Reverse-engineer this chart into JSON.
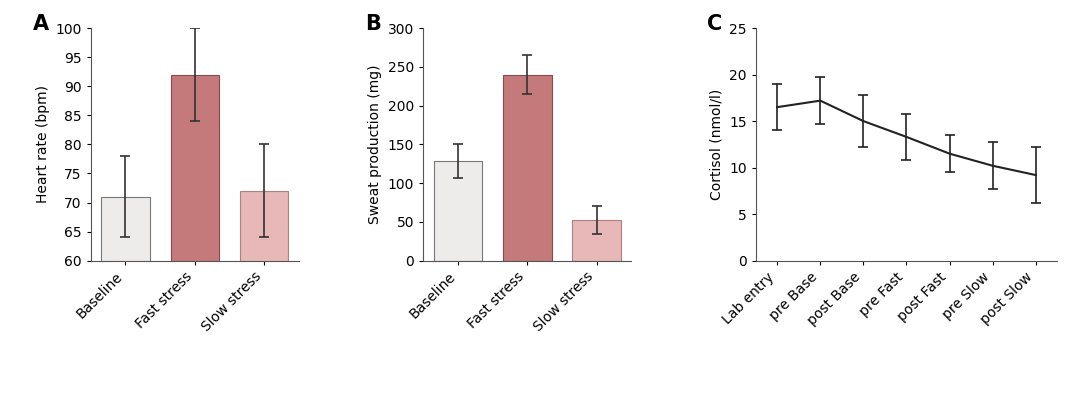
{
  "panel_A": {
    "label": "A",
    "categories": [
      "Baseline",
      "Fast stress",
      "Slow stress"
    ],
    "values": [
      71,
      92,
      72
    ],
    "errors": [
      7,
      8,
      8
    ],
    "bar_colors": [
      "#eeebeb",
      "#c47a7a",
      "#e8b8b8"
    ],
    "bar_edgecolors": [
      "#777777",
      "#8a4a4a",
      "#b08080"
    ],
    "ylabel": "Heart rate (bpm)",
    "ylim": [
      60,
      100
    ],
    "yticks": [
      60,
      65,
      70,
      75,
      80,
      85,
      90,
      95,
      100
    ]
  },
  "panel_B": {
    "label": "B",
    "categories": [
      "Baseline",
      "Fast stress",
      "Slow stress"
    ],
    "values": [
      128,
      240,
      52
    ],
    "errors": [
      22,
      25,
      18
    ],
    "bar_colors": [
      "#eeebeb",
      "#c47a7a",
      "#e8b8b8"
    ],
    "bar_edgecolors": [
      "#777777",
      "#8a4a4a",
      "#b08080"
    ],
    "ylabel": "Sweat production (mg)",
    "ylim": [
      0,
      300
    ],
    "yticks": [
      0,
      50,
      100,
      150,
      200,
      250,
      300
    ]
  },
  "panel_C": {
    "label": "C",
    "x_labels": [
      "Lab entry",
      "pre Base",
      "post Base",
      "pre Fast",
      "post Fast",
      "pre Slow",
      "post Slow"
    ],
    "values": [
      16.5,
      17.2,
      15.0,
      13.3,
      11.5,
      10.2,
      9.2
    ],
    "errors": [
      2.5,
      2.5,
      2.8,
      2.5,
      2.0,
      2.5,
      3.0
    ],
    "line_color": "#222222",
    "ylabel": "Cortisol (nmol/l)",
    "ylim": [
      0,
      25
    ],
    "yticks": [
      0,
      5,
      10,
      15,
      20,
      25
    ]
  },
  "background_color": "#ffffff",
  "tick_fontsize": 10,
  "label_fontsize": 10,
  "panel_label_fontsize": 15
}
